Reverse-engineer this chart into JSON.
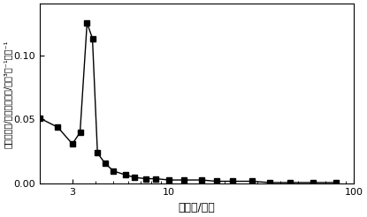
{
  "x": [
    2.0,
    2.5,
    3.0,
    3.3,
    3.6,
    3.85,
    4.1,
    4.5,
    5.0,
    5.8,
    6.5,
    7.5,
    8.5,
    10.0,
    12.0,
    15.0,
    18.0,
    22.0,
    28.0,
    35.0,
    45.0,
    60.0,
    80.0
  ],
  "y": [
    0.051,
    0.044,
    0.031,
    0.04,
    0.125,
    0.113,
    0.024,
    0.016,
    0.01,
    0.007,
    0.005,
    0.004,
    0.004,
    0.003,
    0.003,
    0.003,
    0.002,
    0.002,
    0.002,
    0.001,
    0.001,
    0.001,
    0.001
  ],
  "xlabel": "孔直径/纳米",
  "ylabel_line1": "孔容的微分/孔直径的微分/厘米",
  "ylabel_line2": "³克⁻¹纳米⁻¹",
  "xlim_lo": 2.0,
  "xlim_hi": 100.0,
  "ylim_lo": 0.0,
  "ylim_hi": 0.14,
  "yticks": [
    0.0,
    0.05,
    0.1
  ],
  "xticks_major": [
    3,
    10,
    100
  ],
  "xtick_labels": [
    "3",
    "10",
    "100"
  ],
  "background": "#ffffff",
  "line_color": "#000000",
  "marker": "s",
  "markersize": 4,
  "linewidth": 1.0,
  "tick_labelsize": 8,
  "xlabel_fontsize": 9,
  "ylabel_fontsize": 7
}
